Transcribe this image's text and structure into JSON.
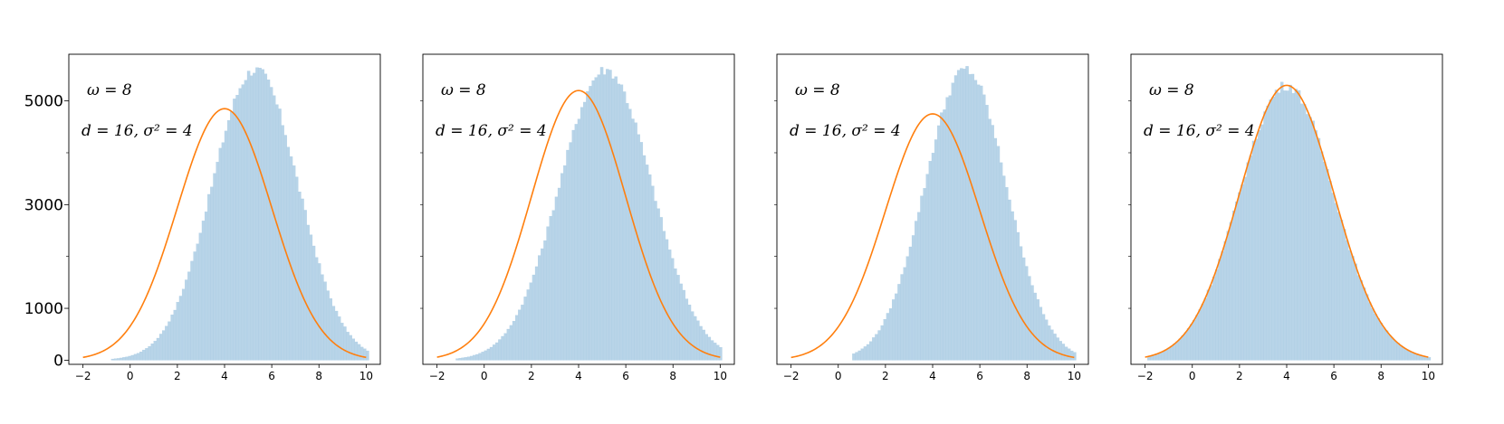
{
  "chart_data": [
    {
      "type": "bar",
      "panel": 1,
      "annotation_line1": "ω = 8",
      "annotation_line2": "d = 16, σ² = 4",
      "xlim": [
        -2.6,
        10.6
      ],
      "ylim": [
        -80,
        5900
      ],
      "xticks": [
        -2,
        0,
        2,
        4,
        6,
        8,
        10
      ],
      "yticks": [
        0,
        1000,
        3000,
        5000
      ],
      "ytick_labels": [
        "0",
        "1000",
        "3000",
        "5000"
      ],
      "yticks_minor": [
        2000,
        4000
      ],
      "histogram": {
        "mean": 5.3,
        "sd": 1.82,
        "peak": 5600,
        "min_x": -0.8,
        "max_x": 10,
        "bin_width": 0.12
      },
      "curve": {
        "mean": 4.0,
        "sd": 2.0,
        "peak": 4850,
        "x_start": -2,
        "x_end": 10
      }
    },
    {
      "type": "bar",
      "panel": 2,
      "annotation_line1": "ω = 8",
      "annotation_line2": "d = 16, σ² = 4",
      "xlim": [
        -2.6,
        10.6
      ],
      "ylim": [
        -80,
        5900
      ],
      "xticks": [
        -2,
        0,
        2,
        4,
        6,
        8,
        10
      ],
      "yticks": [],
      "ytick_labels": [],
      "yticks_minor": [
        1000,
        2000,
        3000,
        4000,
        5000
      ],
      "histogram": {
        "mean": 5.15,
        "sd": 1.95,
        "peak": 5600,
        "min_x": -1.2,
        "max_x": 10,
        "bin_width": 0.12
      },
      "curve": {
        "mean": 4.0,
        "sd": 2.0,
        "peak": 5200,
        "x_start": -2,
        "x_end": 10
      }
    },
    {
      "type": "bar",
      "panel": 3,
      "annotation_line1": "ω = 8",
      "annotation_line2": "d = 16, σ² = 4",
      "xlim": [
        -2.6,
        10.6
      ],
      "ylim": [
        -80,
        5900
      ],
      "xticks": [
        -2,
        0,
        2,
        4,
        6,
        8,
        10
      ],
      "yticks": [],
      "ytick_labels": [],
      "yticks_minor": [
        1000,
        2000,
        3000,
        4000,
        5000
      ],
      "histogram": {
        "mean": 5.4,
        "sd": 1.72,
        "peak": 5600,
        "min_x": 0.6,
        "max_x": 10,
        "bin_width": 0.12
      },
      "curve": {
        "mean": 4.0,
        "sd": 2.0,
        "peak": 4750,
        "x_start": -2,
        "x_end": 10
      }
    },
    {
      "type": "bar",
      "panel": 4,
      "annotation_line1": "ω = 8",
      "annotation_line2": "d = 16, σ² = 4",
      "xlim": [
        -2.6,
        10.6
      ],
      "ylim": [
        -80,
        5900
      ],
      "xticks": [
        -2,
        0,
        2,
        4,
        6,
        8,
        10
      ],
      "yticks": [],
      "ytick_labels": [],
      "yticks_minor": [
        1000,
        2000,
        3000,
        4000,
        5000
      ],
      "histogram": {
        "mean": 4.0,
        "sd": 2.0,
        "peak": 5300,
        "min_x": -1.9,
        "max_x": 10,
        "bin_width": 0.12
      },
      "curve": {
        "mean": 4.0,
        "sd": 2.0,
        "peak": 5300,
        "x_start": -2,
        "x_end": 10
      }
    }
  ],
  "colors": {
    "histogram_fill": "#b8d4e8",
    "histogram_edge": "#a9cbe3",
    "curve": "#ff7f0e",
    "axes": "#000000"
  }
}
